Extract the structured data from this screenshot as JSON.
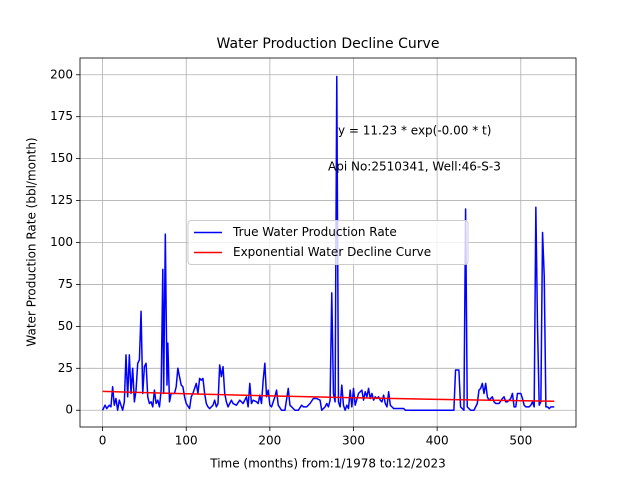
{
  "chart_data": {
    "type": "line",
    "title": "Water Production Decline Curve",
    "xlabel": "Time (months) from:1/1978 to:12/2023",
    "ylabel": "Water Production Rate (bbl/month)",
    "annotations": [
      "y = 11.23 * exp(-0.00 * t)",
      "Api No:2510341, Well:46-S-3"
    ],
    "xlim": [
      -27,
      566
    ],
    "ylim": [
      -10,
      210
    ],
    "xticks": [
      0,
      100,
      200,
      300,
      400,
      500
    ],
    "yticks": [
      0,
      25,
      50,
      75,
      100,
      125,
      150,
      175,
      200
    ],
    "grid": true,
    "legend": "center",
    "series": [
      {
        "name": "True Water Production Rate",
        "color": "#0000ff",
        "x": [
          0,
          3,
          5,
          8,
          10,
          12,
          14,
          16,
          18,
          20,
          22,
          24,
          26,
          28,
          30,
          32,
          34,
          36,
          38,
          40,
          42,
          44,
          46,
          48,
          50,
          52,
          54,
          56,
          58,
          60,
          62,
          64,
          66,
          68,
          70,
          72,
          73,
          75,
          77,
          78,
          80,
          82,
          86,
          88,
          90,
          92,
          94,
          96,
          98,
          100,
          104,
          106,
          108,
          112,
          114,
          116,
          118,
          120,
          122,
          124,
          126,
          128,
          130,
          132,
          134,
          136,
          138,
          140,
          142,
          144,
          146,
          148,
          150,
          152,
          154,
          156,
          160,
          164,
          168,
          172,
          174,
          176,
          178,
          180,
          184,
          186,
          188,
          190,
          192,
          194,
          196,
          198,
          200,
          202,
          204,
          206,
          208,
          210,
          214,
          218,
          222,
          224,
          226,
          230,
          234,
          238,
          240,
          244,
          248,
          252,
          256,
          260,
          262,
          266,
          268,
          270,
          272,
          274,
          276,
          278,
          280,
          282,
          284,
          286,
          288,
          290,
          292,
          294,
          296,
          298,
          300,
          302,
          306,
          310,
          312,
          314,
          316,
          318,
          320,
          322,
          324,
          326,
          328,
          330,
          332,
          334,
          336,
          338,
          340,
          342,
          344,
          346,
          348,
          360,
          362,
          380,
          400,
          420,
          422,
          426,
          428,
          432,
          434,
          436,
          440,
          444,
          448,
          450,
          452,
          454,
          456,
          458,
          460,
          462,
          464,
          466,
          468,
          470,
          474,
          478,
          480,
          482,
          484,
          486,
          488,
          490,
          492,
          494,
          496,
          500,
          502,
          504,
          506,
          508,
          510,
          512,
          514,
          516,
          518,
          520,
          522,
          524,
          526,
          528,
          530,
          532,
          534,
          536,
          540
        ],
        "values": [
          0,
          3,
          1,
          3,
          2,
          14,
          3,
          7,
          0,
          6,
          3,
          0,
          5,
          33,
          8,
          33,
          10,
          25,
          5,
          12,
          28,
          30,
          59,
          10,
          26,
          28,
          8,
          4,
          5,
          2,
          12,
          4,
          6,
          2,
          12,
          84,
          10,
          105,
          15,
          40,
          5,
          10,
          10,
          14,
          25,
          20,
          15,
          14,
          8,
          4,
          1,
          8,
          10,
          16,
          10,
          19,
          18,
          19,
          10,
          4,
          2,
          1,
          2,
          3,
          6,
          2,
          4,
          27,
          20,
          26,
          10,
          5,
          2,
          4,
          6,
          4,
          3,
          6,
          4,
          8,
          2,
          16,
          4,
          6,
          5,
          4,
          9,
          4,
          18,
          28,
          8,
          12,
          3,
          2,
          5,
          8,
          12,
          3,
          0,
          0,
          13,
          3,
          2,
          0,
          0,
          3,
          2,
          2,
          4,
          7,
          7,
          6,
          0,
          2,
          4,
          2,
          6,
          70,
          10,
          5,
          199,
          5,
          2,
          15,
          3,
          0,
          3,
          1,
          12,
          2,
          13,
          3,
          10,
          12,
          6,
          11,
          8,
          13,
          7,
          10,
          6,
          8,
          7,
          8,
          6,
          5,
          9,
          4,
          2,
          11,
          3,
          2,
          1,
          1,
          0,
          0,
          0,
          0,
          24,
          24,
          2,
          0,
          120,
          2,
          0,
          0,
          4,
          12,
          13,
          16,
          10,
          16,
          8,
          6,
          7,
          8,
          5,
          4,
          4,
          7,
          8,
          5,
          5,
          6,
          7,
          10,
          2,
          2,
          10,
          10,
          7,
          3,
          2,
          2,
          2,
          3,
          5,
          2,
          121,
          50,
          3,
          5,
          106,
          80,
          2,
          2,
          1,
          2,
          2
        ]
      },
      {
        "name": "Exponential Water Decline Curve",
        "color": "#ff0000",
        "x": [
          0,
          100,
          200,
          300,
          400,
          540
        ],
        "values": [
          11.23,
          9.79,
          8.54,
          7.44,
          6.49,
          5.38
        ]
      }
    ]
  }
}
